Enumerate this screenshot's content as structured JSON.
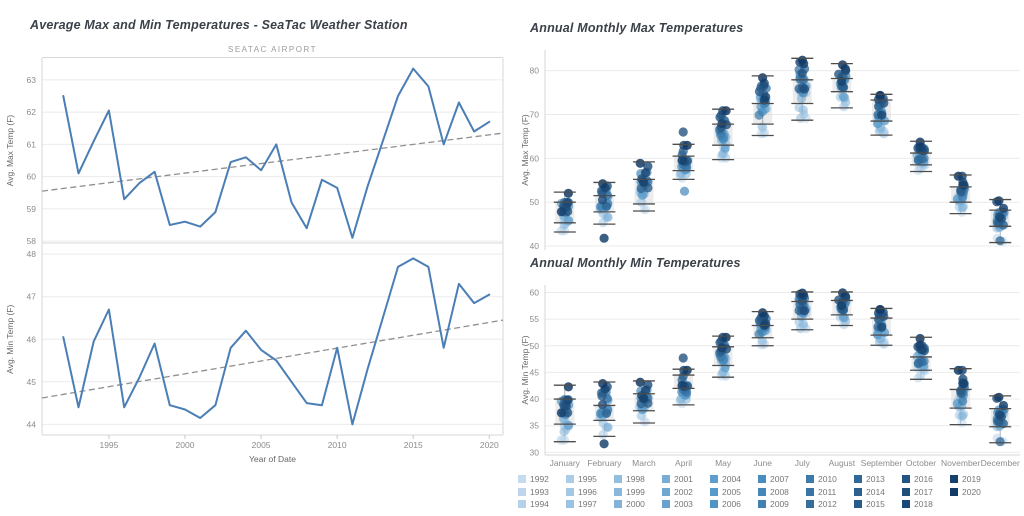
{
  "legend": {
    "years": [
      1992,
      1993,
      1994,
      1995,
      1996,
      1997,
      1998,
      1999,
      2000,
      2001,
      2002,
      2003,
      2004,
      2005,
      2006,
      2007,
      2008,
      2009,
      2010,
      2011,
      2012,
      2013,
      2014,
      2015,
      2016,
      2017,
      2018,
      2019,
      2020
    ]
  },
  "colors": {
    "line": "#4a7eb5",
    "trend": "#8f8f8f",
    "grid": "#ebebeb",
    "border": "#d7d7d7",
    "tick_text": "#8c8c8c",
    "axis_title_text": "#666666",
    "whisker": "#4d4d4d",
    "box_fill": "#cfcfcf",
    "year_scale": [
      "#c6dbef",
      "#4e94c6",
      "#133b66"
    ]
  },
  "chart_data": [
    {
      "id": "avg-max-line",
      "type": "line",
      "title": "Average Max and Min Temperatures - SeaTac Weather Station",
      "pane_label": "SEATAC AIRPORT",
      "ylabel": "Avg. Max Temp (F)",
      "yticks": [
        58,
        59,
        60,
        61,
        62,
        63
      ],
      "ylim": [
        57.94,
        63.68
      ],
      "xlim": [
        1990.6,
        2020.9
      ],
      "x": [
        1992,
        1993,
        1994,
        1995,
        1996,
        1997,
        1998,
        1999,
        2000,
        2001,
        2002,
        2003,
        2004,
        2005,
        2006,
        2007,
        2008,
        2009,
        2010,
        2011,
        2012,
        2013,
        2014,
        2015,
        2016,
        2017,
        2018,
        2019,
        2020
      ],
      "values": [
        62.5,
        60.1,
        61.1,
        62.05,
        59.3,
        59.8,
        60.15,
        58.5,
        58.6,
        58.45,
        58.9,
        60.45,
        60.6,
        60.2,
        61.0,
        59.2,
        58.4,
        59.9,
        59.65,
        58.1,
        59.7,
        61.1,
        62.5,
        63.35,
        62.8,
        61.0,
        62.3,
        61.4,
        61.7
      ],
      "trend": {
        "v0": 59.55,
        "v1": 61.35
      }
    },
    {
      "id": "avg-min-line",
      "type": "line",
      "title": "",
      "ylabel": "Avg. Min Temp (F)",
      "xlabel": "Year of Date",
      "yticks": [
        44,
        45,
        46,
        47,
        48
      ],
      "ylim": [
        43.75,
        48.25
      ],
      "xlim": [
        1990.6,
        2020.9
      ],
      "xticks": [
        1995,
        2000,
        2005,
        2010,
        2015,
        2020
      ],
      "x": [
        1992,
        1993,
        1994,
        1995,
        1996,
        1997,
        1998,
        1999,
        2000,
        2001,
        2002,
        2003,
        2004,
        2005,
        2006,
        2007,
        2008,
        2009,
        2010,
        2011,
        2012,
        2013,
        2014,
        2015,
        2016,
        2017,
        2018,
        2019,
        2020
      ],
      "values": [
        46.05,
        44.4,
        45.95,
        46.7,
        44.4,
        45.1,
        45.9,
        44.45,
        44.35,
        44.15,
        44.45,
        45.8,
        46.2,
        45.75,
        45.5,
        45.0,
        44.5,
        44.45,
        45.8,
        44.0,
        45.3,
        46.5,
        47.7,
        47.9,
        47.7,
        45.8,
        47.3,
        46.85,
        47.05
      ],
      "trend": {
        "v0": 44.62,
        "v1": 46.45
      }
    },
    {
      "id": "monthly-max-strip",
      "type": "strip",
      "title": "Annual Monthly Max Temperatures",
      "ylabel": "Avg. Max Temp (F)",
      "yticks": [
        40,
        50,
        60,
        70,
        80
      ],
      "ylim": [
        39.1,
        84.7
      ],
      "categories": [
        "January",
        "February",
        "March",
        "April",
        "May",
        "June",
        "July",
        "August",
        "September",
        "October",
        "November",
        "December"
      ],
      "months": [
        {
          "min": 43.2,
          "q1": 45.3,
          "q3": 50.0,
          "max": 52.3
        },
        {
          "min": 45.0,
          "q1": 47.8,
          "q3": 51.5,
          "max": 54.5,
          "overrides": {
            "2019": 41.8
          }
        },
        {
          "min": 48.0,
          "q1": 49.6,
          "q3": 55.2,
          "max": 59.2
        },
        {
          "min": 55.2,
          "q1": 57.2,
          "q3": 60.5,
          "max": 63.2,
          "overrides": {
            "2016": 66.0,
            "2008": 52.5
          }
        },
        {
          "min": 59.7,
          "q1": 63.0,
          "q3": 67.8,
          "max": 71.2
        },
        {
          "min": 65.2,
          "q1": 67.8,
          "q3": 72.5,
          "max": 78.8
        },
        {
          "min": 68.7,
          "q1": 72.5,
          "q3": 77.9,
          "max": 82.8
        },
        {
          "min": 71.5,
          "q1": 75.2,
          "q3": 78.2,
          "max": 81.6
        },
        {
          "min": 65.3,
          "q1": 68.5,
          "q3": 73.3,
          "max": 74.6
        },
        {
          "min": 57.0,
          "q1": 58.5,
          "q3": 61.2,
          "max": 63.9
        },
        {
          "min": 47.4,
          "q1": 50.0,
          "q3": 53.5,
          "max": 56.2
        },
        {
          "min": 40.8,
          "q1": 44.5,
          "q3": 48.2,
          "max": 50.6,
          "overrides": {
            "2013": 41.2
          }
        }
      ]
    },
    {
      "id": "monthly-min-strip",
      "type": "strip",
      "title": "Annual Monthly Min Temperatures",
      "ylabel": "Avg. Min Temp (F)",
      "yticks": [
        30,
        35,
        40,
        45,
        50,
        55,
        60
      ],
      "ylim": [
        29.5,
        61.4
      ],
      "categories": [
        "January",
        "February",
        "March",
        "April",
        "May",
        "June",
        "July",
        "August",
        "September",
        "October",
        "November",
        "December"
      ],
      "months": [
        {
          "min": 32.0,
          "q1": 35.3,
          "q3": 40.0,
          "max": 42.6
        },
        {
          "min": 33.0,
          "q1": 36.0,
          "q3": 38.8,
          "max": 43.2,
          "overrides": {
            "2019": 31.6
          }
        },
        {
          "min": 35.5,
          "q1": 37.8,
          "q3": 41.0,
          "max": 43.4
        },
        {
          "min": 38.9,
          "q1": 42.0,
          "q3": 44.5,
          "max": 45.6,
          "overrides": {
            "2016": 47.7
          }
        },
        {
          "min": 44.1,
          "q1": 46.3,
          "q3": 49.8,
          "max": 51.8
        },
        {
          "min": 50.0,
          "q1": 51.5,
          "q3": 53.8,
          "max": 56.4
        },
        {
          "min": 53.0,
          "q1": 55.0,
          "q3": 58.3,
          "max": 60.1
        },
        {
          "min": 53.8,
          "q1": 55.8,
          "q3": 58.5,
          "max": 60.1
        },
        {
          "min": 50.1,
          "q1": 52.0,
          "q3": 55.2,
          "max": 57.0
        },
        {
          "min": 43.7,
          "q1": 45.4,
          "q3": 47.9,
          "max": 51.6
        },
        {
          "min": 35.2,
          "q1": 38.3,
          "q3": 41.8,
          "max": 45.7
        },
        {
          "min": 31.8,
          "q1": 34.8,
          "q3": 38.2,
          "max": 40.6,
          "overrides": {
            "2013": 32.0
          }
        }
      ]
    }
  ]
}
